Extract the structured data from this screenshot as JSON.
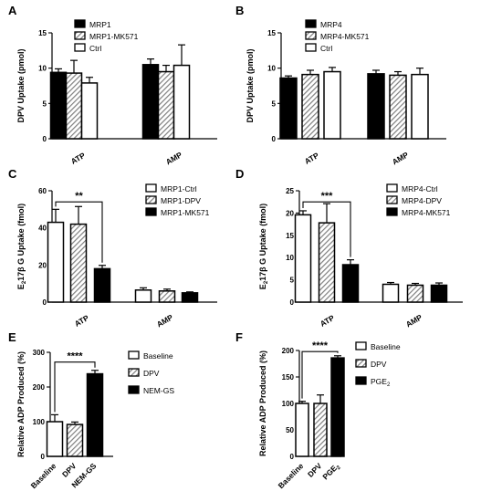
{
  "chart_data": [
    {
      "panel": "A",
      "type": "bar",
      "ylabel": "DPV Uptake (pmol)",
      "ylim": [
        0,
        15
      ],
      "yticks": [
        0,
        5,
        10,
        15
      ],
      "categories": [
        "ATP",
        "AMP"
      ],
      "series": [
        {
          "name": "MRP1",
          "style": "solid",
          "values": [
            9.4,
            10.5
          ],
          "errors": [
            0.5,
            0.8
          ]
        },
        {
          "name": "MRP1-MK571",
          "style": "hatched",
          "values": [
            9.3,
            9.5
          ],
          "errors": [
            1.8,
            0.9
          ]
        },
        {
          "name": "Ctrl",
          "style": "open",
          "values": [
            7.9,
            10.4
          ],
          "errors": [
            0.8,
            2.9
          ]
        }
      ],
      "legend_position": "top-left"
    },
    {
      "panel": "B",
      "type": "bar",
      "ylabel": "DPV Uptake (pmol)",
      "ylim": [
        0,
        15
      ],
      "yticks": [
        0,
        5,
        10,
        15
      ],
      "categories": [
        "ATP",
        "AMP"
      ],
      "series": [
        {
          "name": "MRP4",
          "style": "solid",
          "values": [
            8.6,
            9.2
          ],
          "errors": [
            0.3,
            0.5
          ]
        },
        {
          "name": "MRP4-MK571",
          "style": "hatched",
          "values": [
            9.1,
            9.0
          ],
          "errors": [
            0.6,
            0.5
          ]
        },
        {
          "name": "Ctrl",
          "style": "open",
          "values": [
            9.5,
            9.1
          ],
          "errors": [
            0.6,
            0.9
          ]
        }
      ],
      "legend_position": "top-left"
    },
    {
      "panel": "C",
      "type": "bar",
      "ylabel": "E217βG Uptake (fmol)",
      "ylabel_parts": {
        "pre": "E",
        "sub": "2",
        "post": "17β G Uptake (fmol)"
      },
      "ylim": [
        0,
        60
      ],
      "yticks": [
        0,
        20,
        40,
        60
      ],
      "categories": [
        "ATP",
        "AMP"
      ],
      "series": [
        {
          "name": "MRP1-Ctrl",
          "style": "open",
          "values": [
            43,
            6.5
          ],
          "errors": [
            7,
            1.2
          ]
        },
        {
          "name": "MRP1-DPV",
          "style": "hatched",
          "values": [
            42,
            6.0
          ],
          "errors": [
            9.5,
            1.0
          ]
        },
        {
          "name": "MRP1-MK571",
          "style": "solid",
          "values": [
            18,
            5.0
          ],
          "errors": [
            1.8,
            0.5
          ]
        }
      ],
      "significance": [
        {
          "label": "**",
          "from_series": 0,
          "to_series": 2,
          "category": 0,
          "y": 54
        }
      ],
      "legend_position": "top-right"
    },
    {
      "panel": "D",
      "type": "bar",
      "ylabel": "E217βG Uptake (fmol)",
      "ylabel_parts": {
        "pre": "E",
        "sub": "2",
        "post": "17β G Uptake (fmol)"
      },
      "ylim": [
        0,
        25
      ],
      "yticks": [
        0,
        5,
        10,
        15,
        20,
        25
      ],
      "categories": [
        "ATP",
        "AMP"
      ],
      "series": [
        {
          "name": "MRP4-Ctrl",
          "style": "open",
          "values": [
            19.6,
            4.0
          ],
          "errors": [
            0.9,
            0.4
          ]
        },
        {
          "name": "MRP4-DPV",
          "style": "hatched",
          "values": [
            17.8,
            3.8
          ],
          "errors": [
            4.3,
            0.4
          ]
        },
        {
          "name": "MRP4-MK571",
          "style": "solid",
          "values": [
            8.4,
            3.8
          ],
          "errors": [
            1.1,
            0.5
          ]
        }
      ],
      "significance": [
        {
          "label": "***",
          "from_series": 0,
          "to_series": 2,
          "category": 0,
          "y": 22.5
        }
      ],
      "legend_position": "top-right"
    },
    {
      "panel": "E",
      "type": "bar",
      "ylabel": "Relative ADP Produced (%)",
      "ylim": [
        0,
        300
      ],
      "yticks": [
        0,
        100,
        200,
        300
      ],
      "categories": [
        "Baseline",
        "DPV",
        "NEM-GS"
      ],
      "values": [
        100,
        92,
        238
      ],
      "errors": [
        20,
        7,
        10
      ],
      "styles": [
        "open",
        "hatched",
        "solid"
      ],
      "legend": [
        "Baseline",
        "DPV",
        "NEM-GS"
      ],
      "significance": [
        {
          "label": "****",
          "from": 0,
          "to": 2,
          "y": 272
        }
      ],
      "legend_position": "right"
    },
    {
      "panel": "F",
      "type": "bar",
      "ylabel": "Relative ADP Produced (%)",
      "ylim": [
        0,
        200
      ],
      "yticks": [
        0,
        50,
        100,
        150,
        200
      ],
      "categories": [
        "Baseline",
        "DPV",
        "PGE2"
      ],
      "category_parts": [
        null,
        null,
        {
          "pre": "PGE",
          "sub": "2"
        }
      ],
      "values": [
        100,
        100,
        186
      ],
      "errors": [
        4,
        16,
        4
      ],
      "styles": [
        "open",
        "hatched",
        "solid"
      ],
      "legend": [
        "Baseline",
        "DPV",
        "PGE2"
      ],
      "legend_parts": [
        null,
        null,
        {
          "pre": "PGE",
          "sub": "2"
        }
      ],
      "significance": [
        {
          "label": "****",
          "from": 0,
          "to": 2,
          "y": 198
        }
      ],
      "legend_position": "right"
    }
  ]
}
